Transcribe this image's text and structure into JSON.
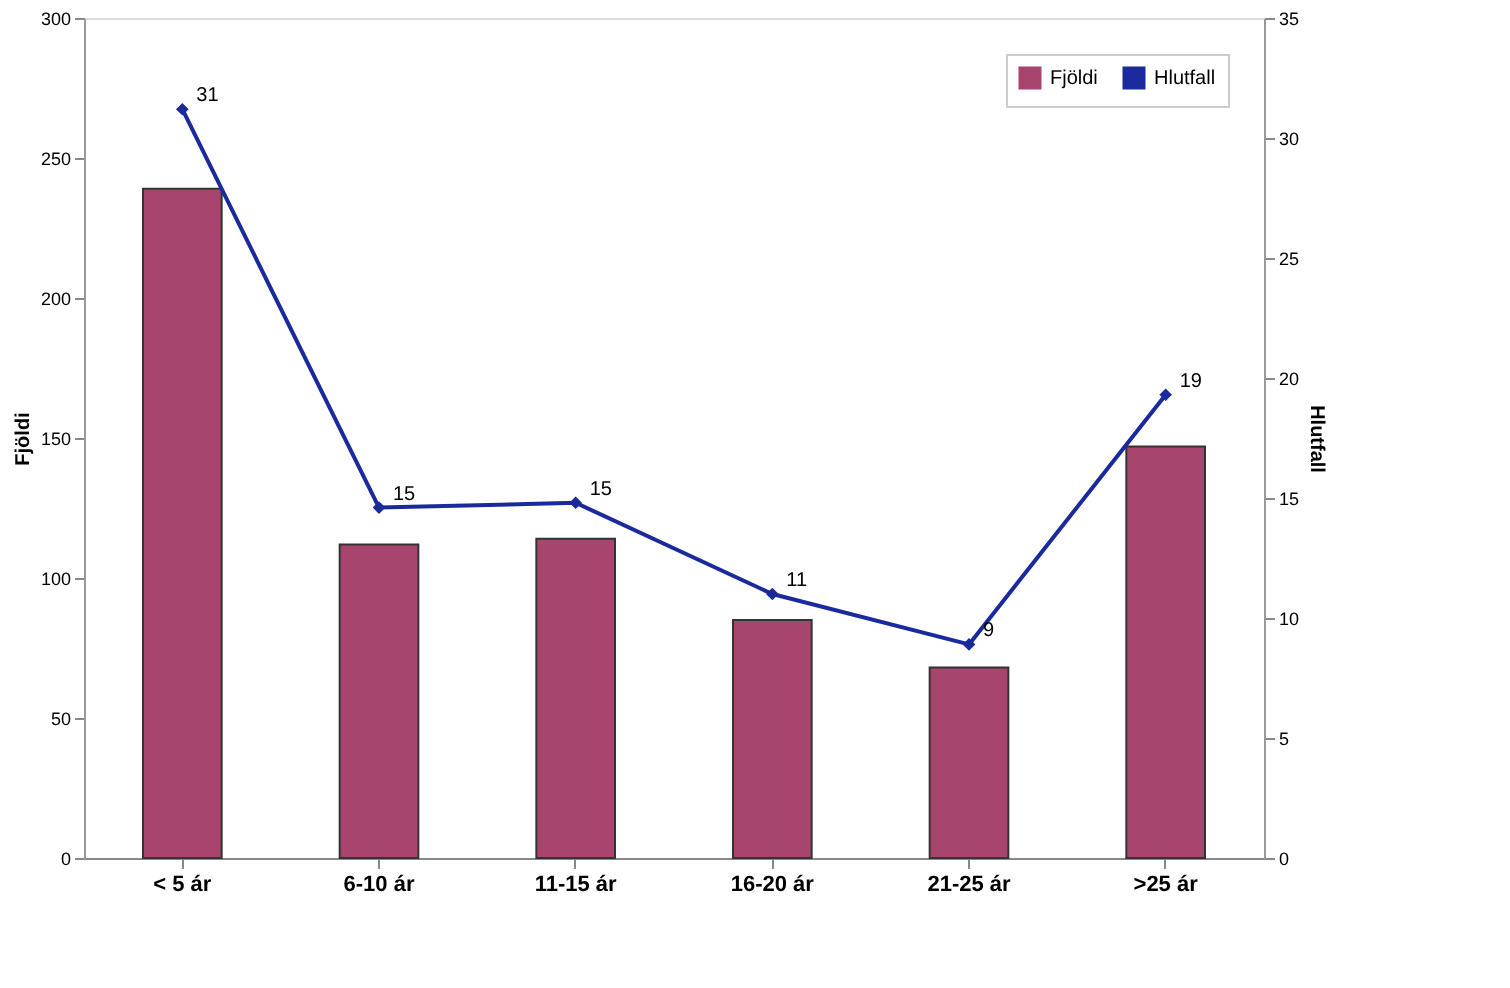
{
  "chart_data": {
    "type": "bar",
    "ylabel": "Fjöldi",
    "y2label": "Hlutfall",
    "categories": [
      "< 5 ár",
      "6-10 ár",
      "11-15 ár",
      "16-20 ár",
      "21-25 ár",
      ">25 ár"
    ],
    "series": [
      {
        "name": "Fjöldi",
        "color": "#a8456f",
        "values": [
          239,
          112,
          114,
          85,
          68,
          147
        ]
      },
      {
        "name": "Hlutfall",
        "type": "line",
        "axis": "y2",
        "color": "#1a2a9c",
        "marker": "diamond",
        "values": [
          31.2,
          14.6,
          14.8,
          11.0,
          8.9,
          19.3
        ],
        "value_labels": [
          "31",
          "15",
          "15",
          "11",
          "9",
          "19"
        ]
      }
    ],
    "ylim": [
      0,
      300
    ],
    "yticks": [
      0,
      50,
      100,
      150,
      200,
      250,
      300
    ],
    "y2lim": [
      0,
      35
    ],
    "y2ticks": [
      0,
      5,
      10,
      15,
      20,
      25,
      30,
      35
    ],
    "grid": false,
    "legend": "top right"
  }
}
